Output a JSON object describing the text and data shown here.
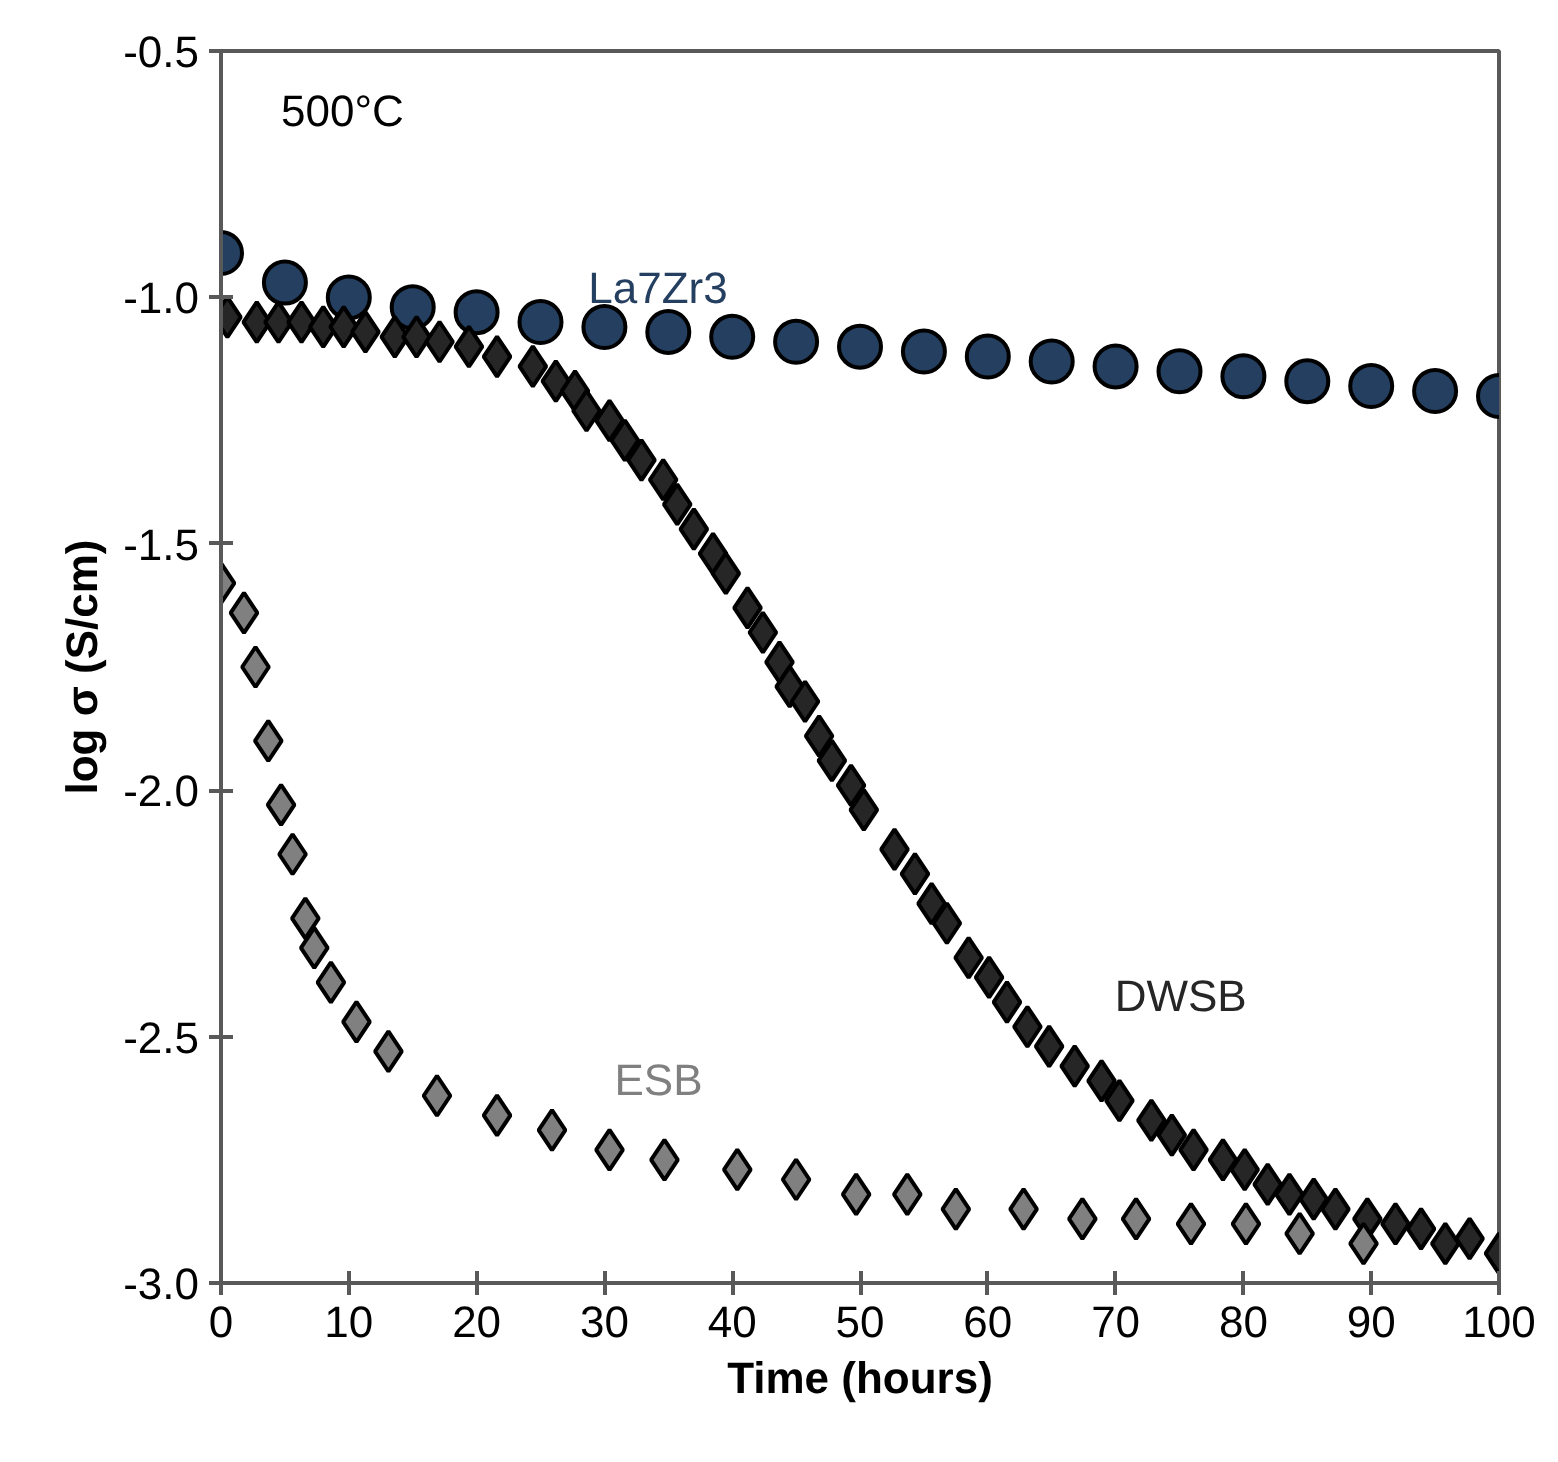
{
  "chart_data": {
    "type": "scatter",
    "xlabel": "Time (hours)",
    "ylabel": "log σ (S/cm)",
    "annotations": [
      "500°C"
    ],
    "xlim": [
      0,
      100
    ],
    "xticks": [
      0,
      10,
      20,
      30,
      40,
      50,
      60,
      70,
      80,
      90,
      100
    ],
    "ylim": [
      -3.0,
      -0.5
    ],
    "yticks": [
      {
        "value": -3.0,
        "label": "-3.0"
      },
      {
        "value": -2.5,
        "label": "-2.5"
      },
      {
        "value": -2.0,
        "label": "-2.0"
      },
      {
        "value": -1.5,
        "label": "-1.5"
      },
      {
        "value": -1.0,
        "label": "-1.0"
      },
      {
        "value": -0.5,
        "label": "-0.5"
      }
    ],
    "grid": false,
    "series": [
      {
        "name": "La7Zr3",
        "color": "#243f60",
        "marker": "circle",
        "x": [
          0,
          5,
          10,
          15,
          20,
          25,
          30,
          35,
          40,
          45,
          50,
          55,
          60,
          65,
          70,
          75,
          80,
          85,
          90,
          95,
          100
        ],
        "values": [
          -0.91,
          -0.97,
          -1.0,
          -1.02,
          -1.03,
          -1.05,
          -1.06,
          -1.07,
          -1.08,
          -1.09,
          -1.1,
          -1.11,
          -1.12,
          -1.13,
          -1.14,
          -1.15,
          -1.16,
          -1.17,
          -1.18,
          -1.19,
          -1.2
        ]
      },
      {
        "name": "DWSB",
        "color": "#262626",
        "marker": "diamond",
        "x": [
          0.5,
          2.8,
          4.5,
          6.3,
          8,
          9.6,
          11.3,
          13.6,
          15.3,
          17.1,
          19.4,
          21.6,
          24.4,
          26.2,
          27.7,
          28.6,
          30.4,
          31.6,
          32.9,
          34.6,
          35.7,
          37.0,
          38.5,
          39.5,
          41.2,
          42.4,
          43.7,
          44.5,
          45.7,
          46.8,
          47.8,
          49.3,
          50.3,
          52.7,
          54.3,
          55.6,
          56.8,
          58.5,
          60.1,
          61.5,
          63.1,
          64.8,
          66.8,
          68.9,
          70.3,
          72.8,
          74.4,
          76.1,
          78.4,
          80.1,
          81.9,
          83.6,
          85.5,
          87.2,
          89.7,
          91.9,
          93.9,
          95.8,
          97.7,
          100
        ],
        "values": [
          -1.04,
          -1.05,
          -1.05,
          -1.05,
          -1.06,
          -1.06,
          -1.07,
          -1.08,
          -1.08,
          -1.09,
          -1.1,
          -1.12,
          -1.14,
          -1.17,
          -1.19,
          -1.23,
          -1.25,
          -1.29,
          -1.33,
          -1.37,
          -1.42,
          -1.47,
          -1.52,
          -1.56,
          -1.63,
          -1.68,
          -1.74,
          -1.79,
          -1.82,
          -1.89,
          -1.94,
          -1.99,
          -2.04,
          -2.12,
          -2.17,
          -2.23,
          -2.27,
          -2.34,
          -2.38,
          -2.43,
          -2.48,
          -2.52,
          -2.56,
          -2.59,
          -2.63,
          -2.67,
          -2.7,
          -2.73,
          -2.75,
          -2.77,
          -2.8,
          -2.82,
          -2.83,
          -2.85,
          -2.87,
          -2.88,
          -2.89,
          -2.92,
          -2.91,
          -2.94
        ]
      },
      {
        "name": "ESB",
        "color": "#808080",
        "marker": "diamond",
        "x": [
          0,
          1.8,
          2.7,
          3.7,
          4.7,
          5.6,
          6.6,
          7.3,
          8.6,
          10.6,
          13.1,
          16.9,
          21.6,
          25.9,
          30.4,
          34.7,
          40.4,
          45.0,
          49.7,
          53.7,
          57.5,
          62.8,
          67.4,
          71.6,
          75.9,
          80.2,
          84.4,
          89.4
        ],
        "values": [
          -1.58,
          -1.64,
          -1.75,
          -1.9,
          -2.03,
          -2.13,
          -2.26,
          -2.32,
          -2.39,
          -2.47,
          -2.53,
          -2.62,
          -2.66,
          -2.69,
          -2.73,
          -2.75,
          -2.77,
          -2.79,
          -2.82,
          -2.82,
          -2.85,
          -2.85,
          -2.87,
          -2.87,
          -2.88,
          -2.88,
          -2.9,
          -2.92
        ]
      }
    ]
  }
}
